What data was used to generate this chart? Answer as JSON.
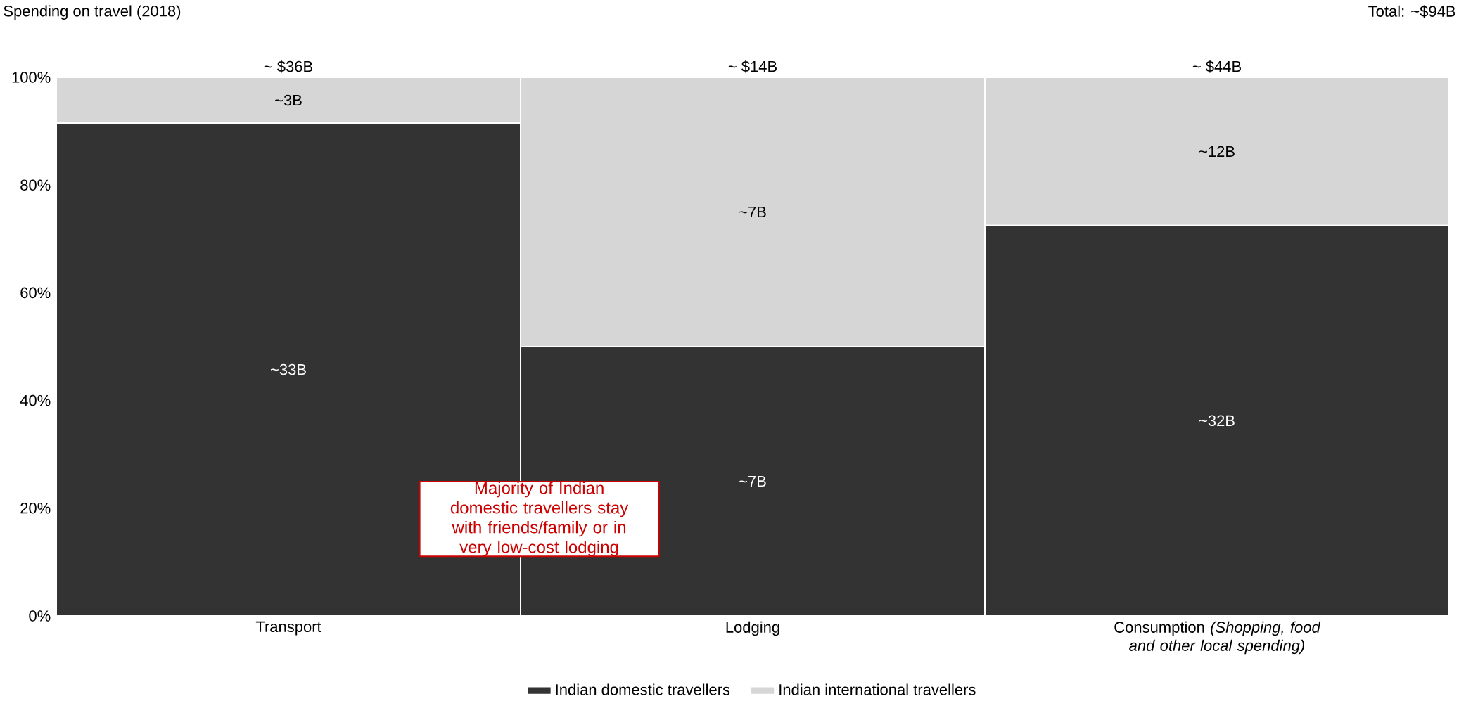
{
  "chart_data": {
    "type": "bar",
    "stacked": true,
    "title": "Spending on travel (2018)",
    "categories": [
      "Transport",
      "Lodging",
      "Consumption *(Shopping, food and other local spending)*"
    ],
    "series": [
      {
        "name": "Indian domestic travellers",
        "color": "#333333",
        "values": [
          91.5,
          50,
          72.5
        ]
      },
      {
        "name": "Indian international travellers",
        "color": "#d6d6d6",
        "values": [
          8.5,
          50,
          27.5
        ]
      }
    ],
    "ylim": [
      0,
      100
    ],
    "yticks": [
      {
        "value": 0,
        "label": "0%"
      },
      {
        "value": 20,
        "label": "20%"
      },
      {
        "value": 40,
        "label": "40%"
      },
      {
        "value": 60,
        "label": "60%"
      },
      {
        "value": 80,
        "label": "80%"
      },
      {
        "value": 100,
        "label": "100%"
      }
    ],
    "legend": "bottom",
    "annotations": [
      "Total: ~$94B",
      "Majority of Indian domestic travellers stay with friends/family or in very low-cost lodging",
      "~ $36B",
      "~ $14B",
      "~ $44B",
      "~33B",
      "~7B",
      "~32B",
      "~3B",
      "~7B",
      "~12B"
    ]
  }
}
